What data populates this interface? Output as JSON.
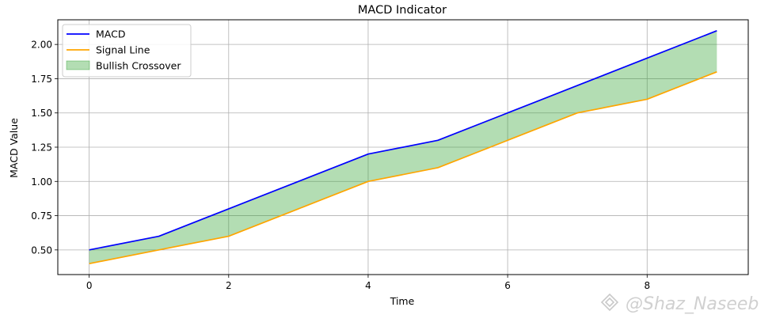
{
  "watermark": "@Shaz_Naseeb",
  "chart_data": {
    "type": "line",
    "title": "MACD Indicator",
    "xlabel": "Time",
    "ylabel": "MACD Value",
    "x": [
      0,
      1,
      2,
      3,
      4,
      5,
      6,
      7,
      8,
      9
    ],
    "series": [
      {
        "name": "MACD",
        "color": "#0000ff",
        "values": [
          0.5,
          0.6,
          0.8,
          1.0,
          1.2,
          1.3,
          1.5,
          1.7,
          1.9,
          2.1
        ]
      },
      {
        "name": "Signal Line",
        "color": "#ffa500",
        "values": [
          0.4,
          0.5,
          0.6,
          0.8,
          1.0,
          1.1,
          1.3,
          1.5,
          1.6,
          1.8
        ]
      }
    ],
    "fill": {
      "name": "Bullish Crossover",
      "color": "#2ca02c",
      "between": [
        "MACD",
        "Signal Line"
      ]
    },
    "xlim": [
      -0.45,
      9.45
    ],
    "ylim": [
      0.32,
      2.18
    ],
    "xticks": [
      0,
      2,
      4,
      6,
      8
    ],
    "yticks": [
      0.5,
      0.75,
      1.0,
      1.25,
      1.5,
      1.75,
      2.0
    ],
    "ytick_labels": [
      "0.50",
      "0.75",
      "1.00",
      "1.25",
      "1.50",
      "1.75",
      "2.00"
    ],
    "grid": true,
    "legend_position": "top-left"
  }
}
